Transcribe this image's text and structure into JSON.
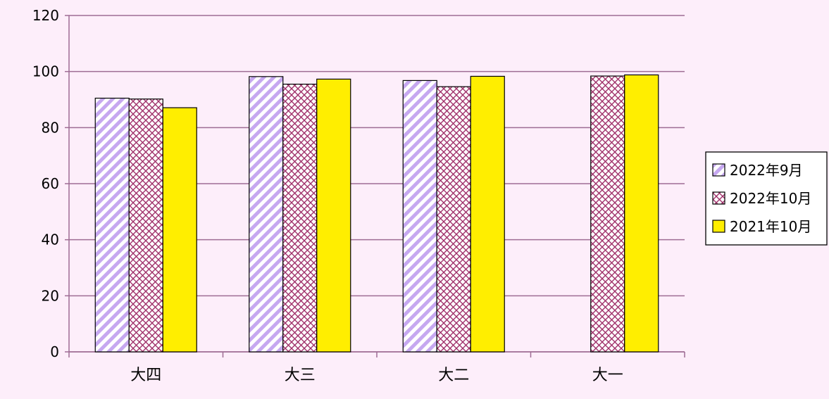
{
  "chart_data": {
    "type": "bar",
    "categories": [
      "大四",
      "大三",
      "大二",
      "大一"
    ],
    "series": [
      {
        "name": "2022年9月",
        "values": [
          90.5,
          98.2,
          96.8,
          null
        ],
        "color": "#c6a8f0",
        "pattern": "diagonal-stripes"
      },
      {
        "name": "2022年10月",
        "values": [
          90.2,
          95.5,
          94.6,
          98.4
        ],
        "color": "#a0306a",
        "pattern": "crosshatch"
      },
      {
        "name": "2021年10月",
        "values": [
          87.1,
          97.3,
          98.3,
          98.8
        ],
        "color": "#ffee00",
        "pattern": "solid"
      }
    ],
    "ylim": [
      0,
      120
    ],
    "yticks": [
      "0",
      "20",
      "40",
      "60",
      "80",
      "100",
      "120"
    ],
    "grid": true,
    "legend_position": "right",
    "background_color": "#fdeefa",
    "grid_color": "#9e6c94"
  }
}
